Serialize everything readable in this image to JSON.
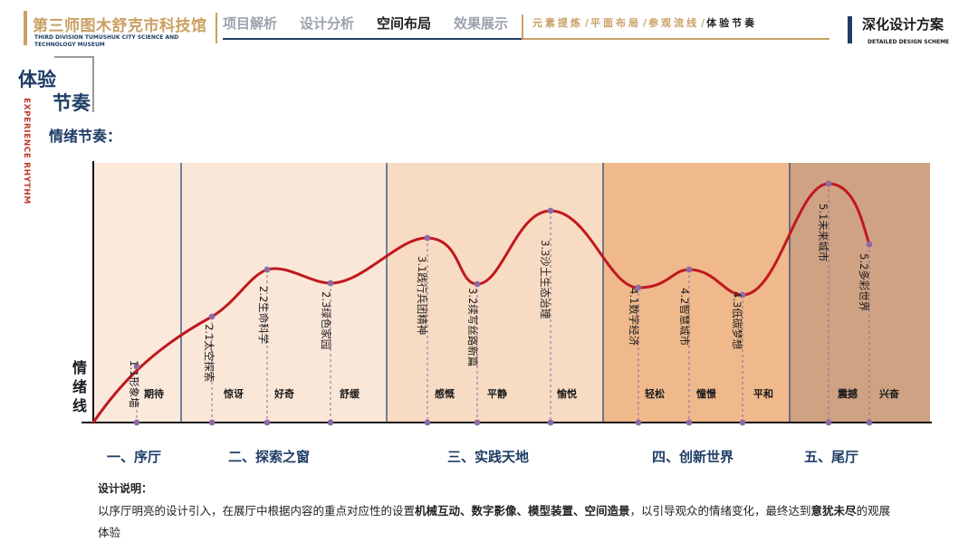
{
  "header": {
    "logo_title": "第三师图木舒克市科技馆",
    "logo_sub1": "THIRD DIVISION TUMUSHUK CITY SCIENCE AND",
    "logo_sub2": "TECHNOLOGY MUSEUM",
    "tabs": [
      {
        "label": "项目解析",
        "active": false
      },
      {
        "label": "设计分析",
        "active": false
      },
      {
        "label": "空间布局",
        "active": true
      },
      {
        "label": "效果展示",
        "active": false
      }
    ],
    "subnav": [
      {
        "label": "元素提炼",
        "active": false
      },
      {
        "label": "平面布局",
        "active": false
      },
      {
        "label": "参观流线",
        "active": false
      },
      {
        "label": "体验节奏",
        "active": true
      }
    ],
    "subnav_sep": "/",
    "scheme_title": "深化设计方案",
    "scheme_sub": "DETAILED DESIGN SCHEME"
  },
  "section": {
    "title_line1": "体验",
    "title_line2": "节奏",
    "vertical_en": "EXPERIENCE RHYTHM",
    "heading": "情绪节奏："
  },
  "diagram": {
    "y_axis_label": "情绪线",
    "bands": [
      {
        "zone": "一、序厅",
        "color": "#fbe9dc"
      },
      {
        "zone": "二、探索之窗",
        "color": "#fbe7d8"
      },
      {
        "zone": "三、实践天地",
        "color": "#f8dbc3"
      },
      {
        "zone": "四、创新世界",
        "color": "#efb98c"
      },
      {
        "zone": "五、尾厅",
        "color": "#cfa283"
      }
    ],
    "points": [
      {
        "id": "1.1",
        "label": "形象墙",
        "emotion": "期待"
      },
      {
        "id": "2.1",
        "label": "太空探索",
        "emotion": "惊讶"
      },
      {
        "id": "2.2",
        "label": "生命科学",
        "emotion": "好奇"
      },
      {
        "id": "2.3",
        "label": "绿色家园",
        "emotion": "舒缓"
      },
      {
        "id": "3.1",
        "label": "践行兵团精神",
        "emotion": "感慨"
      },
      {
        "id": "3.2",
        "label": "续写丝路新篇",
        "emotion": "平静"
      },
      {
        "id": "3.3",
        "label": "沙土生态治理",
        "emotion": "愉悦"
      },
      {
        "id": "4.1",
        "label": "数字经济",
        "emotion": "轻松"
      },
      {
        "id": "4.2",
        "label": "智慧城市",
        "emotion": "憧憬"
      },
      {
        "id": "4.3",
        "label": "低碳梦想",
        "emotion": "平和"
      },
      {
        "id": "5.1",
        "label": "未来城市",
        "emotion": "震撼"
      },
      {
        "id": "5.2",
        "label": "多彩世界",
        "emotion": "兴奋"
      }
    ],
    "colors": {
      "curve": "#c0181e",
      "marker": "#8e6aa5",
      "divider": "#2b4a7a",
      "axis": "#111111"
    }
  },
  "description": {
    "title": "设计说明：",
    "text_parts": [
      {
        "t": "以序厅明亮的设计引入，在展厅中根据内容的重点对应性的设置",
        "b": false
      },
      {
        "t": "机械互动、数字影像、模型装置、空间造景",
        "b": true
      },
      {
        "t": "，以引导观众的情绪变化，最终达到",
        "b": false
      },
      {
        "t": "意犹未尽",
        "b": true
      },
      {
        "t": "的观展体验",
        "b": false
      }
    ]
  }
}
